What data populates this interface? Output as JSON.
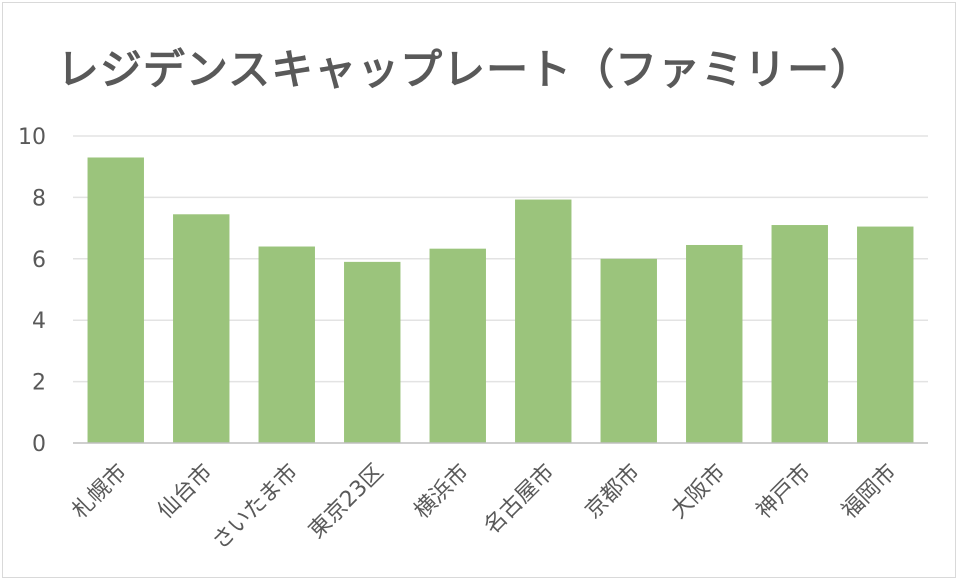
{
  "chart_data": {
    "type": "bar",
    "title": "レジデンスキャップレート（ファミリー）",
    "xlabel": "",
    "ylabel": "",
    "categories": [
      "札幌市",
      "仙台市",
      "さいたま市",
      "東京23区",
      "横浜市",
      "名古屋市",
      "京都市",
      "大阪市",
      "神戸市",
      "福岡市"
    ],
    "values": [
      9.3,
      7.45,
      6.4,
      5.9,
      6.33,
      7.93,
      6.0,
      6.45,
      7.1,
      7.05
    ],
    "ylim": [
      0,
      10
    ],
    "yticks": [
      "0",
      "2",
      "4",
      "6",
      "8",
      "10"
    ],
    "grid": true,
    "legend": "none",
    "bar_color": "#9bc47c"
  }
}
